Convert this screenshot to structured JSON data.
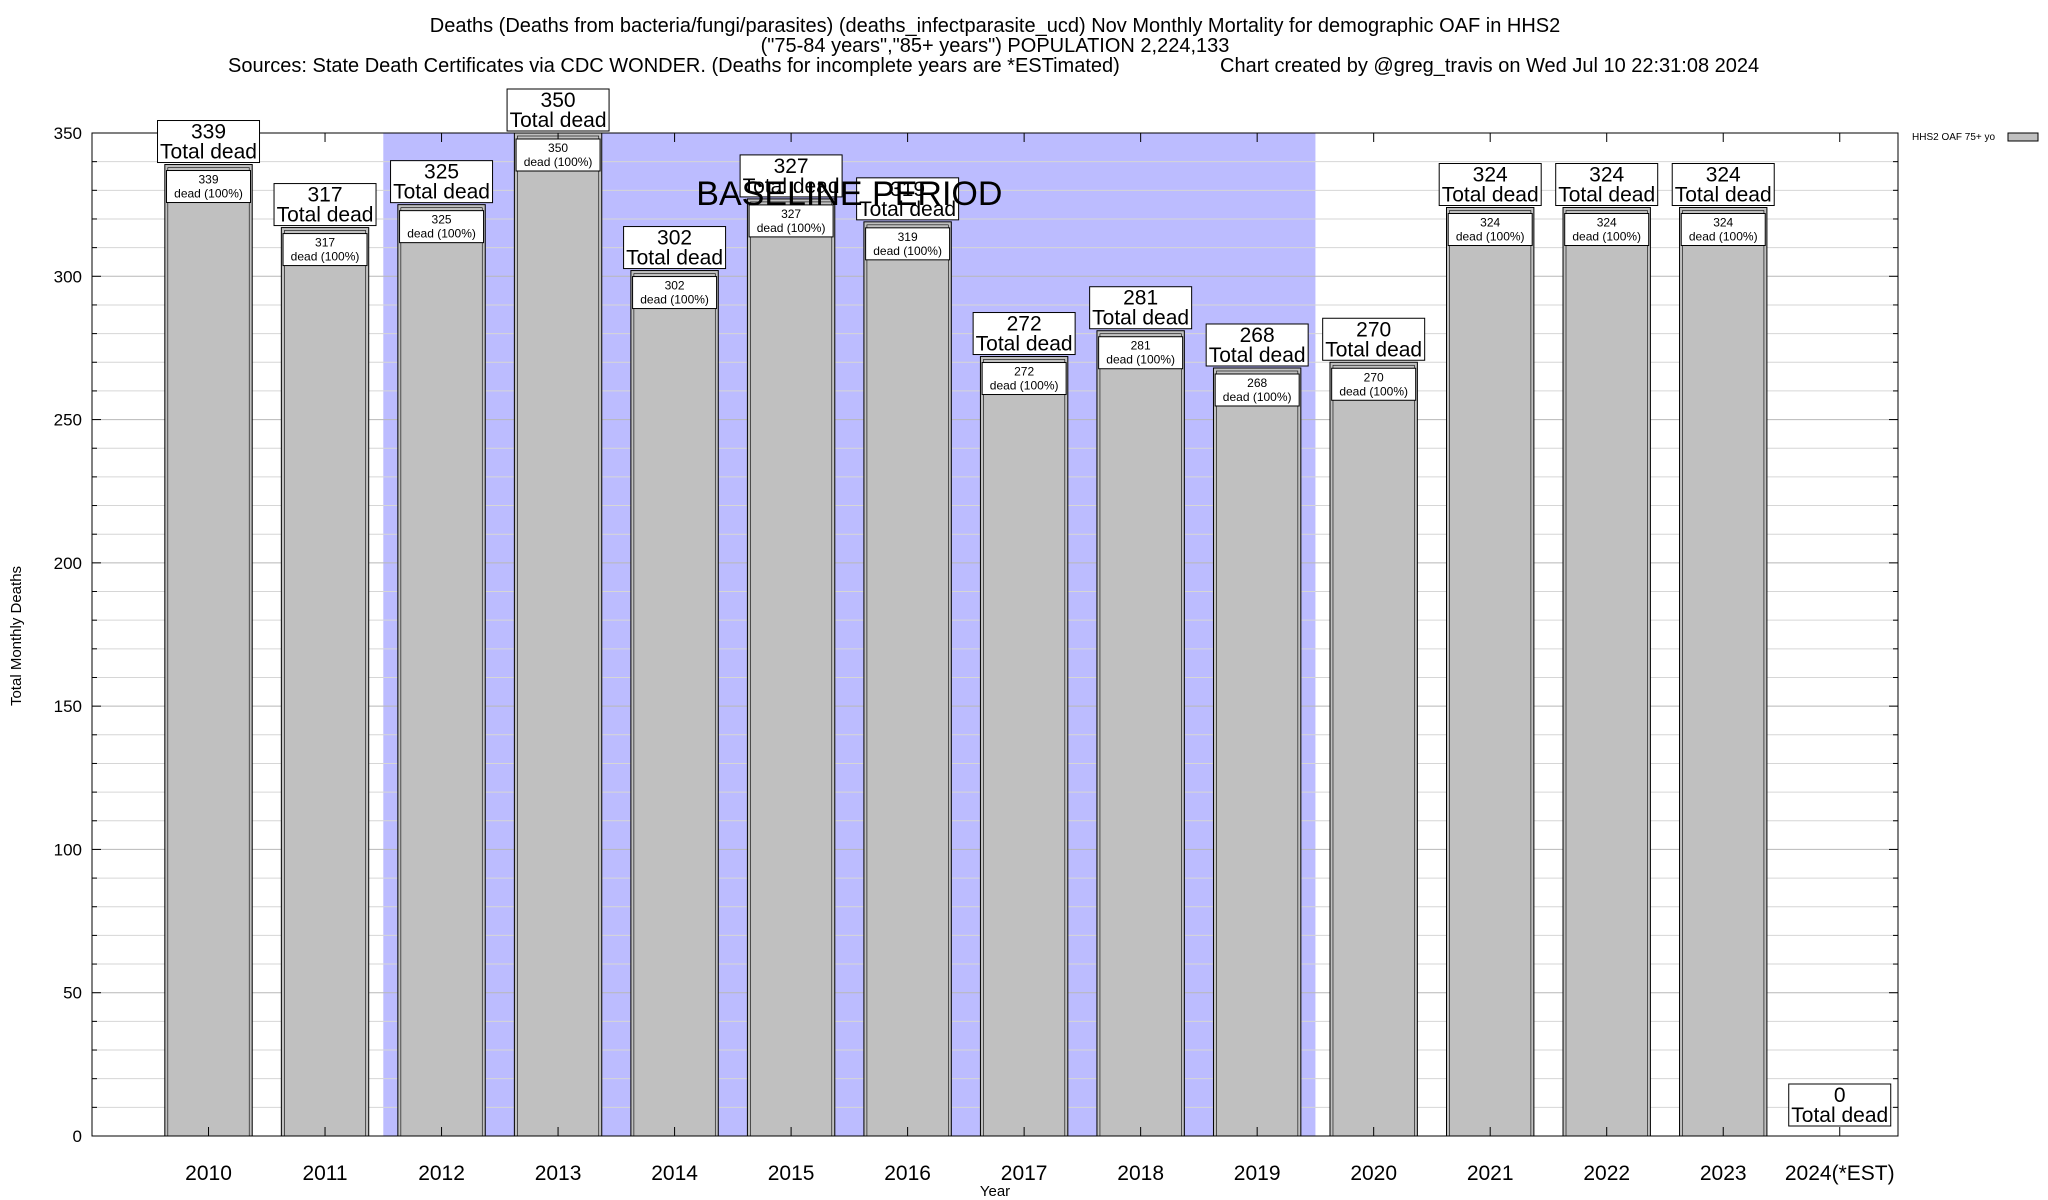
{
  "chart_data": {
    "type": "bar",
    "title_lines": [
      "Deaths (Deaths from bacteria/fungi/parasites) (deaths_infectparasite_ucd) Nov Monthly Mortality for demographic OAF in HHS2",
      "(\"75-84 years\",\"85+ years\") POPULATION 2,224,133"
    ],
    "sources": "Sources: State Death Certificates via CDC WONDER. (Deaths for incomplete years are *ESTimated)",
    "credit": "Chart created by @greg_travis on Wed Jul 10 22:31:08 2024",
    "xlabel": "Year",
    "ylabel": "Total Monthly Deaths",
    "ylim": [
      0,
      350
    ],
    "yticks": [
      0,
      50,
      100,
      150,
      200,
      250,
      300,
      350
    ],
    "categories": [
      "2010",
      "2011",
      "2012",
      "2013",
      "2014",
      "2015",
      "2016",
      "2017",
      "2018",
      "2019",
      "2020",
      "2021",
      "2022",
      "2023",
      "2024(*EST)"
    ],
    "values": [
      339,
      317,
      325,
      350,
      302,
      327,
      319,
      272,
      281,
      268,
      270,
      324,
      324,
      324,
      0
    ],
    "total_label": "Total dead",
    "pct_label": "dead (100%)",
    "baseline": {
      "label": "BASELINE PERIOD",
      "start_category": "2012",
      "end_category": "2019",
      "color": "#bcbcff"
    },
    "bar_color": "#c0c0c0",
    "legend": {
      "label": "HHS2 OAF 75+ yo",
      "placement": "top-right"
    },
    "grid": true
  }
}
